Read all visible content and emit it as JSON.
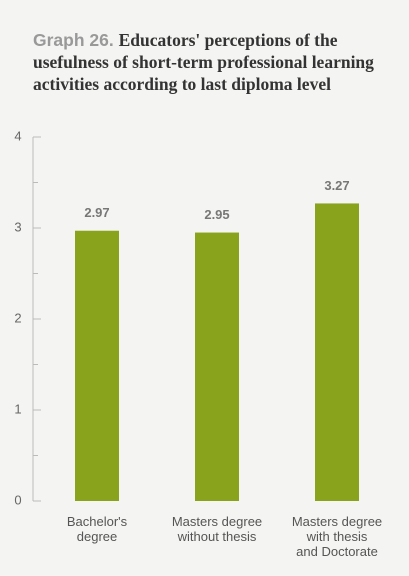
{
  "chart_data": {
    "type": "bar",
    "title_label": "Graph 26.",
    "title": "Educators' perceptions of the usefulness of short-term professional learning activities according to last diploma level",
    "categories": [
      "Bachelor's\ndegree",
      "Masters degree\nwithout thesis",
      "Masters degree\nwith thesis\nand Doctorate"
    ],
    "values": [
      2.97,
      2.95,
      3.27
    ],
    "color": "#8aa31c",
    "ylim": [
      0,
      4
    ],
    "yticks": [
      0,
      1,
      2,
      3,
      4
    ],
    "minor_yticks": [
      0.5,
      1.5,
      2.5,
      3.5
    ]
  }
}
